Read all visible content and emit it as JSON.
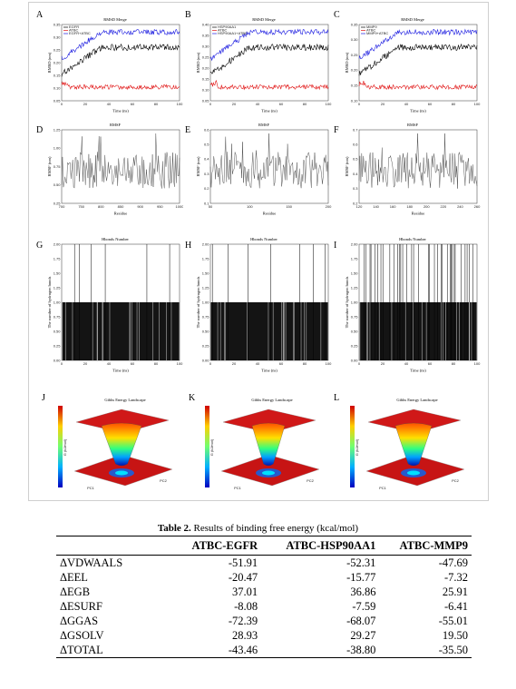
{
  "figure": {
    "rmsd_panels": [
      {
        "letter": "A",
        "title": "RMSD Merge",
        "xlabel": "Time (ns)",
        "ylabel": "RMSD (nm)",
        "yticks": [
          "0.35",
          "0.30",
          "0.25",
          "0.20",
          "0.15",
          "0.10",
          "0.05"
        ],
        "xticks": [
          "0",
          "20",
          "40",
          "60",
          "80",
          "100"
        ],
        "legend": [
          "EGFR",
          "ATBC",
          "EGFR+ATBC"
        ]
      },
      {
        "letter": "B",
        "title": "RMSD Merge",
        "xlabel": "Time (ns)",
        "ylabel": "RMSD (nm)",
        "yticks": [
          "0.40",
          "0.35",
          "0.30",
          "0.25",
          "0.20",
          "0.15",
          "0.10",
          "0.05"
        ],
        "xticks": [
          "0",
          "20",
          "40",
          "60",
          "80",
          "100"
        ],
        "legend": [
          "HSP90AA1",
          "ATBC",
          "HSP90AA1+ATBC"
        ]
      },
      {
        "letter": "C",
        "title": "RMSD Merge",
        "xlabel": "Time (ns)",
        "ylabel": "RMSD (nm)",
        "yticks": [
          "0.35",
          "0.30",
          "0.25",
          "0.20",
          "0.15",
          "0.10"
        ],
        "xticks": [
          "0",
          "20",
          "40",
          "60",
          "80",
          "100"
        ],
        "legend": [
          "MMP9",
          "ATBC",
          "MMP9+ATBC"
        ]
      }
    ],
    "rmsf_panels": [
      {
        "letter": "D",
        "title": "RMSF",
        "xlabel": "Residue",
        "ylabel": "RMSF (nm)",
        "yticks": [
          "1.25",
          "1.00",
          "0.75",
          "0.50",
          "0.25"
        ],
        "xticks": [
          "700",
          "750",
          "800",
          "850",
          "900",
          "950",
          "1000"
        ]
      },
      {
        "letter": "E",
        "title": "RMSF",
        "xlabel": "Residue",
        "ylabel": "RMSF (nm)",
        "yticks": [
          "0.6",
          "0.5",
          "0.4",
          "0.3",
          "0.2",
          "0.1"
        ],
        "xticks": [
          "50",
          "100",
          "150",
          "200"
        ]
      },
      {
        "letter": "F",
        "title": "RMSF",
        "xlabel": "Residue",
        "ylabel": "RMSF (nm)",
        "yticks": [
          "0.7",
          "0.6",
          "0.5",
          "0.4",
          "0.3",
          "0.2"
        ],
        "xticks": [
          "120",
          "140",
          "160",
          "180",
          "200",
          "220",
          "240",
          "260"
        ]
      }
    ],
    "hbond_panels": [
      {
        "letter": "G",
        "title": "Hbonds Number",
        "xlabel": "Time (ns)",
        "ylabel": "The number of hydrogen bonds",
        "yticks": [
          "2.00",
          "1.75",
          "1.50",
          "1.25",
          "1.00",
          "0.75",
          "0.50",
          "0.25",
          "0.00"
        ],
        "xticks": [
          "0",
          "20",
          "40",
          "60",
          "80",
          "100"
        ]
      },
      {
        "letter": "H",
        "title": "Hbonds Number",
        "xlabel": "Time (ns)",
        "ylabel": "The number of hydrogen bonds",
        "yticks": [
          "2.00",
          "1.75",
          "1.50",
          "1.25",
          "1.00",
          "0.75",
          "0.50",
          "0.25",
          "0.00"
        ],
        "xticks": [
          "0",
          "20",
          "40",
          "60",
          "80",
          "100"
        ]
      },
      {
        "letter": "I",
        "title": "Hbonds Number",
        "xlabel": "Time (ns)",
        "ylabel": "The number of hydrogen bonds",
        "yticks": [
          "2.00",
          "1.75",
          "1.50",
          "1.25",
          "1.00",
          "0.75",
          "0.50",
          "0.25",
          "0.00"
        ],
        "xticks": [
          "0",
          "20",
          "40",
          "60",
          "80",
          "100"
        ]
      }
    ],
    "fel_panels": [
      {
        "letter": "J",
        "title": "Gibbs Energy Landscape",
        "xlabel": "PC1",
        "ylabel": "PC2",
        "zlabel": "G (kJ/mol)"
      },
      {
        "letter": "K",
        "title": "Gibbs Energy Landscape",
        "xlabel": "PC1",
        "ylabel": "PC2",
        "zlabel": "G (kJ/mol)"
      },
      {
        "letter": "L",
        "title": "Gibbs Energy Landscape",
        "xlabel": "PC1",
        "ylabel": "PC2",
        "zlabel": "G (kJ/mol)"
      }
    ],
    "colors": {
      "protein": "#000000",
      "ligand": "#e01010",
      "complex": "#1a1ae0"
    }
  },
  "table": {
    "caption_bold": "Table 2.",
    "caption_rest": " Results of binding free energy (kcal/mol)",
    "headers": [
      "",
      "ATBC-EGFR",
      "ATBC-HSP90AA1",
      "ATBC-MMP9"
    ],
    "rows": [
      [
        "ΔVDWAALS",
        "-51.91",
        "-52.31",
        "-47.69"
      ],
      [
        "ΔEEL",
        "-20.47",
        "-15.77",
        "-7.32"
      ],
      [
        "ΔEGB",
        "37.01",
        "36.86",
        "25.91"
      ],
      [
        "ΔESURF",
        "-8.08",
        "-7.59",
        "-6.41"
      ],
      [
        "ΔGGAS",
        "-72.39",
        "-68.07",
        "-55.01"
      ],
      [
        "ΔGSOLV",
        "28.93",
        "29.27",
        "19.50"
      ],
      [
        "ΔTOTAL",
        "-43.46",
        "-38.80",
        "-35.50"
      ]
    ]
  }
}
